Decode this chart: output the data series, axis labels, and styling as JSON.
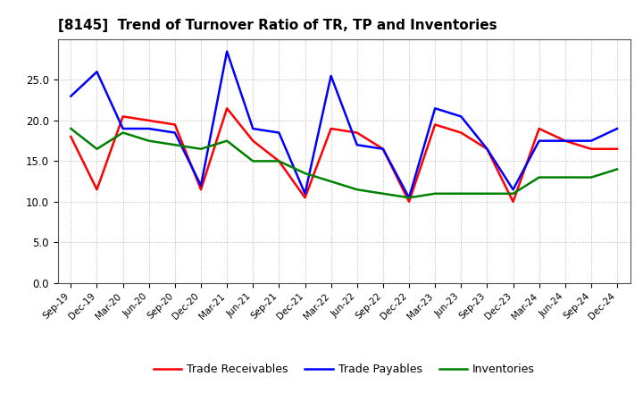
{
  "title": "[8145]  Trend of Turnover Ratio of TR, TP and Inventories",
  "x_labels": [
    "Sep-19",
    "Dec-19",
    "Mar-20",
    "Jun-20",
    "Sep-20",
    "Dec-20",
    "Mar-21",
    "Jun-21",
    "Sep-21",
    "Dec-21",
    "Mar-22",
    "Jun-22",
    "Sep-22",
    "Dec-22",
    "Mar-23",
    "Jun-23",
    "Sep-23",
    "Dec-23",
    "Mar-24",
    "Jun-24",
    "Sep-24",
    "Dec-24"
  ],
  "trade_receivables": [
    18.0,
    11.5,
    20.5,
    20.0,
    19.5,
    11.5,
    21.5,
    17.5,
    15.0,
    10.5,
    19.0,
    18.5,
    16.5,
    10.0,
    19.5,
    18.5,
    16.5,
    10.0,
    19.0,
    17.5,
    16.5,
    16.5
  ],
  "trade_payables": [
    23.0,
    26.0,
    19.0,
    19.0,
    18.5,
    12.0,
    28.5,
    19.0,
    18.5,
    11.0,
    25.5,
    17.0,
    16.5,
    10.5,
    21.5,
    20.5,
    16.5,
    11.5,
    17.5,
    17.5,
    17.5,
    19.0
  ],
  "inventories": [
    19.0,
    16.5,
    18.5,
    17.5,
    17.0,
    16.5,
    17.5,
    15.0,
    15.0,
    13.5,
    12.5,
    11.5,
    11.0,
    10.5,
    11.0,
    11.0,
    11.0,
    11.0,
    13.0,
    13.0,
    13.0,
    14.0
  ],
  "ylim": [
    0,
    30
  ],
  "yticks": [
    0.0,
    5.0,
    10.0,
    15.0,
    20.0,
    25.0
  ],
  "line_colors": {
    "trade_receivables": "#ff0000",
    "trade_payables": "#0000ff",
    "inventories": "#008000"
  },
  "line_width": 1.8,
  "background_color": "#ffffff",
  "plot_bg_color": "#ffffff",
  "grid_color": "#888888",
  "legend_labels": [
    "Trade Receivables",
    "Trade Payables",
    "Inventories"
  ]
}
